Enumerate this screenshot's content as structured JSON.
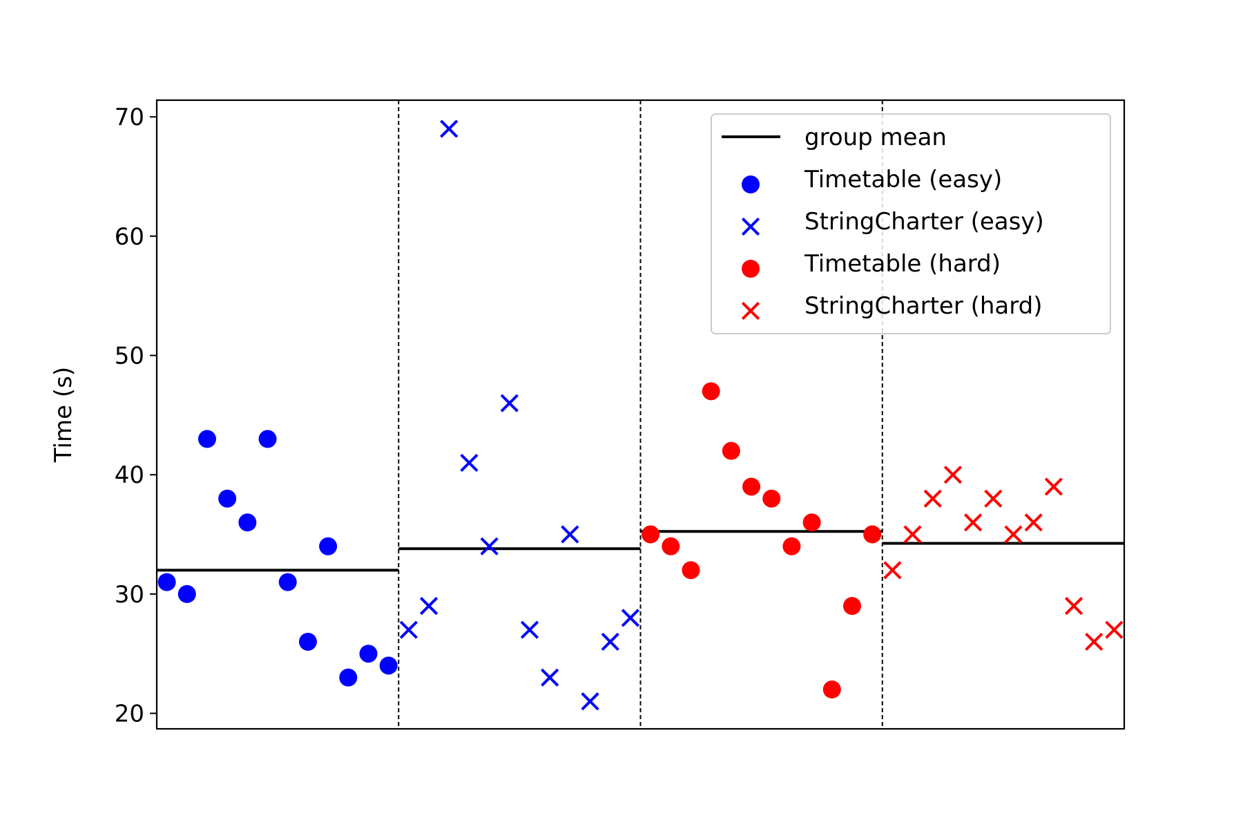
{
  "chart_data": {
    "type": "scatter",
    "title": "",
    "xlabel": "",
    "ylabel": "Time (s)",
    "ylim": [
      18.7,
      71.4
    ],
    "xlim": [
      -0.5,
      47.5
    ],
    "yticks": [
      20,
      30,
      40,
      50,
      60,
      70
    ],
    "grid": false,
    "legend_position": "top-right",
    "group_separators": [
      11.5,
      23.5,
      35.5
    ],
    "series": [
      {
        "name": "Timetable (easy)",
        "marker": "circle",
        "color": "#0000ff",
        "x": [
          0,
          1,
          2,
          3,
          4,
          5,
          6,
          7,
          8,
          9,
          10,
          11
        ],
        "y": [
          31,
          30,
          43,
          38,
          36,
          43,
          31,
          26,
          34,
          23,
          25,
          24
        ]
      },
      {
        "name": "StringCharter (easy)",
        "marker": "x",
        "color": "#0000ff",
        "x": [
          12,
          13,
          14,
          15,
          16,
          17,
          18,
          19,
          20,
          21,
          22,
          23
        ],
        "y": [
          27,
          29,
          69,
          41,
          34,
          46,
          27,
          23,
          35,
          21,
          26,
          28
        ]
      },
      {
        "name": "Timetable (hard)",
        "marker": "circle",
        "color": "#ff0000",
        "x": [
          24,
          25,
          26,
          27,
          28,
          29,
          30,
          31,
          32,
          33,
          34,
          35
        ],
        "y": [
          35,
          34,
          32,
          47,
          42,
          39,
          38,
          34,
          36,
          22,
          29,
          35
        ]
      },
      {
        "name": "StringCharter (hard)",
        "marker": "x",
        "color": "#ff0000",
        "x": [
          36,
          37,
          38,
          39,
          40,
          41,
          42,
          43,
          44,
          45,
          46,
          47
        ],
        "y": [
          32,
          35,
          38,
          40,
          36,
          38,
          35,
          36,
          39,
          29,
          26,
          27
        ]
      }
    ],
    "group_means": {
      "name": "group mean",
      "color": "#000000",
      "segments": [
        {
          "x0": -0.5,
          "x1": 11.5,
          "y": 32.0
        },
        {
          "x0": 11.5,
          "x1": 23.5,
          "y": 33.8
        },
        {
          "x0": 23.5,
          "x1": 35.5,
          "y": 35.25
        },
        {
          "x0": 35.5,
          "x1": 47.5,
          "y": 34.25
        }
      ]
    }
  }
}
